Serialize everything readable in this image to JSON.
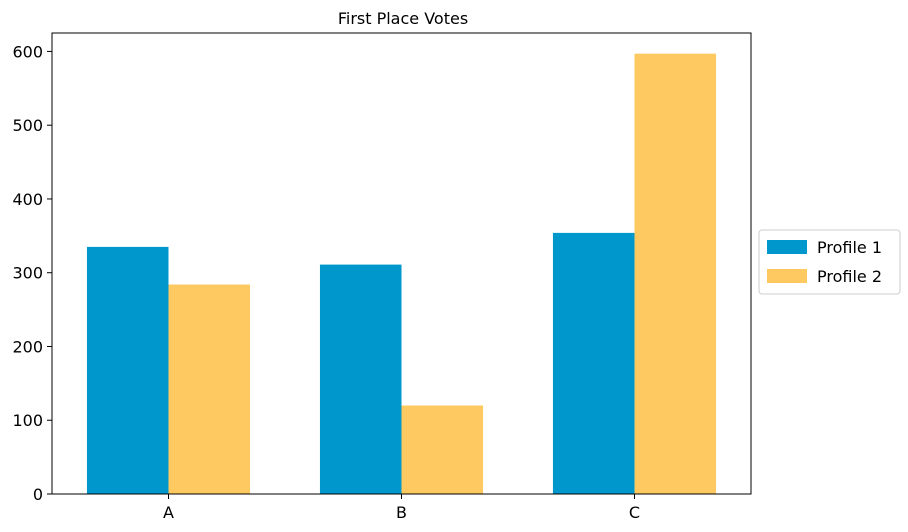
{
  "chart_data": {
    "type": "bar",
    "title": "First Place Votes",
    "xlabel": "",
    "ylabel": "",
    "categories": [
      "A",
      "B",
      "C"
    ],
    "series": [
      {
        "name": "Profile 1",
        "color": "#0098CC",
        "values": [
          335,
          311,
          354
        ]
      },
      {
        "name": "Profile 2",
        "color": "#FFC961",
        "values": [
          284,
          120,
          597
        ]
      }
    ],
    "ylim": [
      0,
      625
    ],
    "yticks": [
      0,
      100,
      200,
      300,
      400,
      500,
      600
    ],
    "grid": false,
    "legend_position": "center-right, outside plot"
  }
}
